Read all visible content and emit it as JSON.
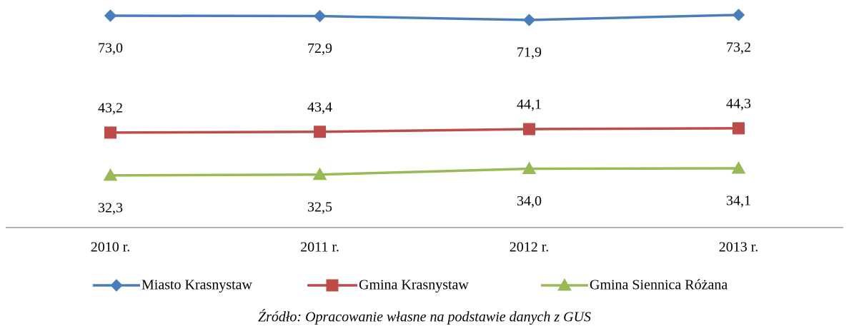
{
  "chart_data": {
    "type": "line",
    "categories": [
      "2010 r.",
      "2011 r.",
      "2012 r.",
      "2013 r."
    ],
    "ylim": [
      19,
      77
    ],
    "series": [
      {
        "name": "Miasto Krasnystaw",
        "color": "#4a7ebb",
        "marker": "diamond",
        "label_position": "below",
        "values": [
          73.0,
          72.9,
          71.9,
          73.2
        ],
        "value_labels": [
          "73,0",
          "72,9",
          "71,9",
          "73,2"
        ]
      },
      {
        "name": "Gmina Krasnystaw",
        "color": "#be4b48",
        "marker": "square",
        "label_position": "above",
        "values": [
          43.2,
          43.4,
          44.1,
          44.3
        ],
        "value_labels": [
          "43,2",
          "43,4",
          "44,1",
          "44,3"
        ]
      },
      {
        "name": "Gmina Siennica Różana",
        "color": "#98b954",
        "marker": "triangle",
        "label_position": "below",
        "values": [
          32.3,
          32.5,
          34.0,
          34.1
        ],
        "value_labels": [
          "32,3",
          "32,5",
          "34,0",
          "34,1"
        ]
      }
    ],
    "legend": "bottom",
    "note": "Źródło: Opracowanie własne na podstawie danych z GUS"
  }
}
